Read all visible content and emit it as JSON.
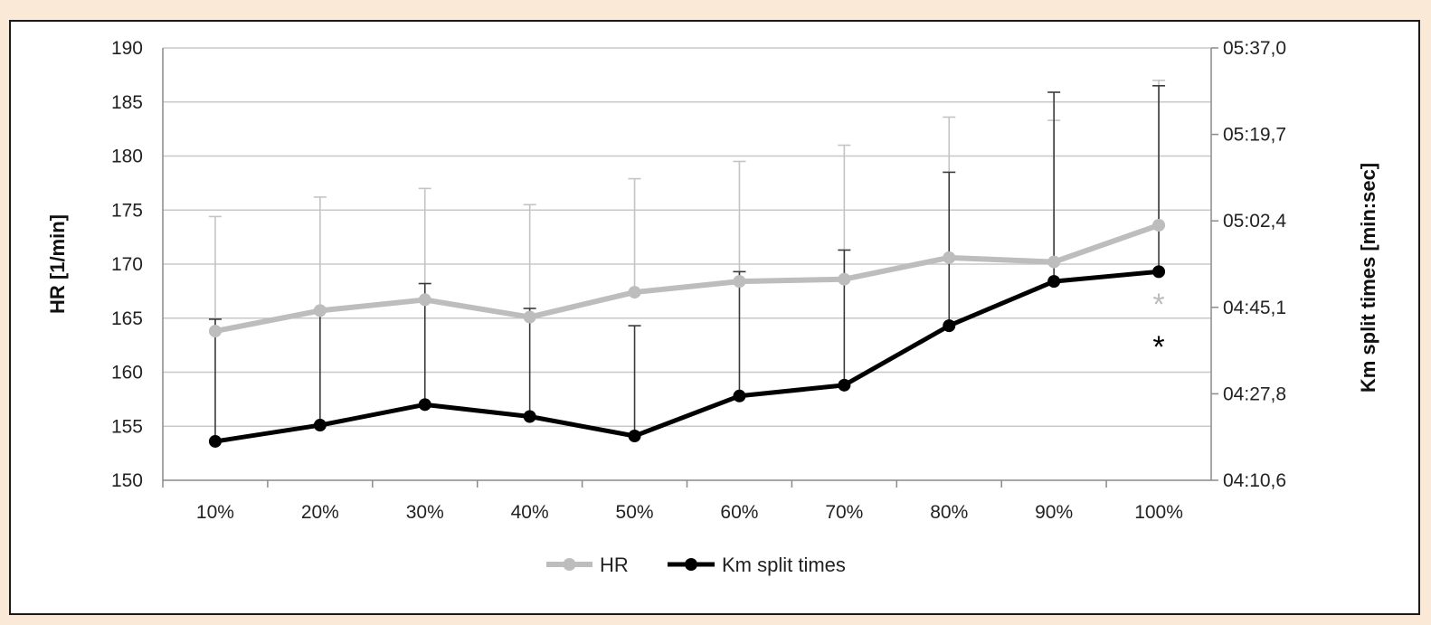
{
  "chart_data": {
    "type": "line",
    "categories": [
      "10%",
      "20%",
      "30%",
      "40%",
      "50%",
      "60%",
      "70%",
      "80%",
      "90%",
      "100%"
    ],
    "y_left": {
      "label": "HR [1/min]",
      "min": 150,
      "max": 190,
      "ticks": [
        "150",
        "155",
        "160",
        "165",
        "170",
        "175",
        "180",
        "185",
        "190"
      ]
    },
    "y_right": {
      "label": "Km split times [min:sec]",
      "ticks": [
        "04:10,6",
        "04:27,8",
        "04:45,1",
        "05:02,4",
        "05:19,7",
        "05:37,0"
      ]
    },
    "series": [
      {
        "name": "HR",
        "color": "#bdbdbd",
        "values": [
          163.8,
          165.7,
          166.7,
          165.1,
          167.4,
          168.4,
          168.6,
          170.6,
          170.2,
          173.6
        ],
        "err_upper": [
          174.4,
          176.2,
          177.0,
          175.5,
          177.9,
          179.5,
          181.0,
          183.6,
          183.3,
          187.0
        ],
        "marker": "*"
      },
      {
        "name": "Km split times",
        "color": "#000000",
        "values": [
          153.6,
          155.1,
          157.0,
          155.9,
          154.1,
          157.8,
          158.8,
          164.3,
          168.4,
          169.3
        ],
        "err_upper": [
          164.9,
          165.8,
          168.2,
          165.9,
          164.3,
          169.3,
          171.3,
          178.5,
          185.9,
          186.5
        ],
        "marker": "*"
      }
    ],
    "grid": true,
    "legend": "bottom-center"
  }
}
